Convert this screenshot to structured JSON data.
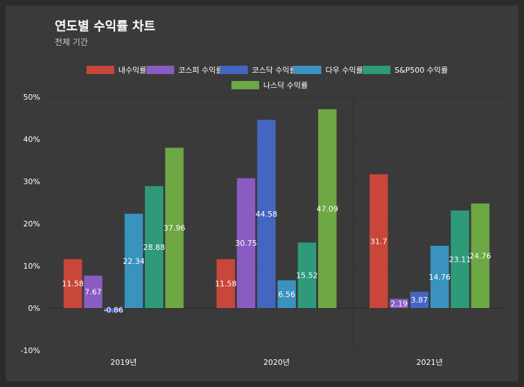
{
  "header": {
    "title": "연도별 수익률 차트",
    "subtitle": "전체 기간"
  },
  "chart_data": {
    "type": "bar",
    "title": "연도별 수익률 차트",
    "subtitle": "전체 기간",
    "categories": [
      "2019년",
      "2020년",
      "2021년"
    ],
    "ylim": [
      -10,
      50
    ],
    "yticks": [
      -10,
      0,
      10,
      20,
      30,
      40,
      50
    ],
    "ytick_labels": [
      "-10%",
      "0%",
      "10%",
      "20%",
      "30%",
      "40%",
      "50%"
    ],
    "grid": true,
    "legend_position": "top",
    "series": [
      {
        "name": "내수익률",
        "color": "#c8473a",
        "values": [
          11.58,
          11.58,
          31.7
        ]
      },
      {
        "name": "코스피 수익률",
        "color": "#8a5cc2",
        "values": [
          7.67,
          30.75,
          2.19
        ]
      },
      {
        "name": "코스닥 수익률",
        "color": "#4466c0",
        "values": [
          -0.86,
          44.58,
          3.87
        ]
      },
      {
        "name": "다우 수익률",
        "color": "#3a92bf",
        "values": [
          22.34,
          6.56,
          14.76
        ]
      },
      {
        "name": "S&P500 수익률",
        "color": "#2e9a7a",
        "values": [
          28.88,
          15.52,
          23.11
        ]
      },
      {
        "name": "나스닥 수익률",
        "color": "#6ea844",
        "values": [
          37.96,
          47.09,
          24.76
        ]
      }
    ]
  }
}
